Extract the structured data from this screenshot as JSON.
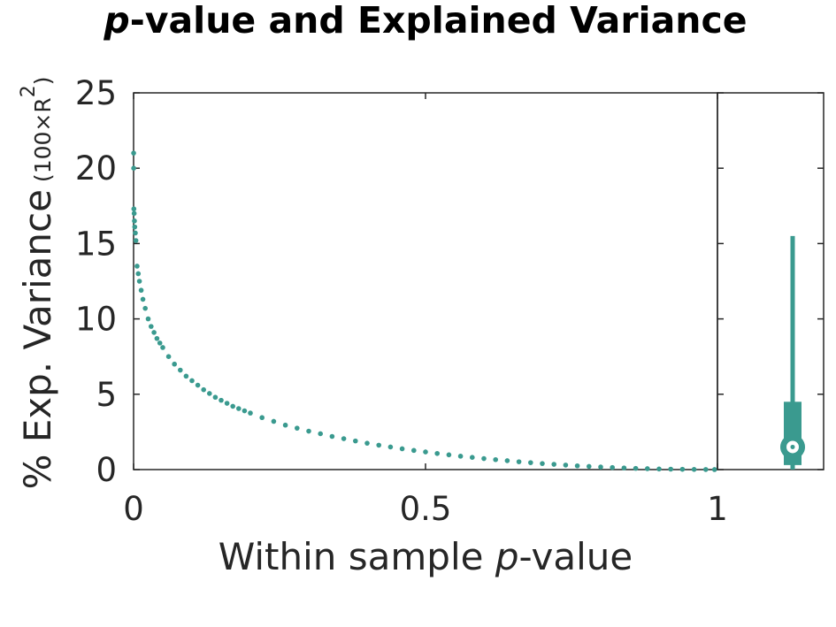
{
  "title": {
    "italic": "p",
    "rest": "-value and Explained Variance"
  },
  "xlabel": {
    "pre": "Within sample ",
    "italic": "p",
    "post": "-value"
  },
  "ylabel": {
    "main": "% Exp. Variance",
    "unit": "(100×R",
    "unit_sup": "2",
    "unit_close": ")"
  },
  "colors": {
    "series": "#3a9a8f",
    "axis": "#262626",
    "background": "#ffffff"
  },
  "chart_data": [
    {
      "type": "scatter",
      "xlim": [
        0,
        1
      ],
      "ylim": [
        0,
        25
      ],
      "grid": false,
      "x_ticks": [
        "0",
        "0.5",
        "1"
      ],
      "x_tick_values": [
        0,
        0.5,
        1
      ],
      "y_ticks": [
        "0",
        "5",
        "10",
        "15",
        "20",
        "25"
      ],
      "y_tick_values": [
        0,
        5,
        10,
        15,
        20,
        25
      ],
      "points": [
        [
          0.0001,
          21.0
        ],
        [
          0.0002,
          20.0
        ],
        [
          0.0005,
          17.3
        ],
        [
          0.001,
          17.0
        ],
        [
          0.0015,
          16.5
        ],
        [
          0.002,
          16.1
        ],
        [
          0.003,
          15.7
        ],
        [
          0.004,
          15.2
        ],
        [
          0.006,
          13.5
        ],
        [
          0.008,
          13.0
        ],
        [
          0.01,
          12.5
        ],
        [
          0.013,
          11.9
        ],
        [
          0.016,
          11.3
        ],
        [
          0.02,
          10.7
        ],
        [
          0.025,
          10.0
        ],
        [
          0.03,
          9.5
        ],
        [
          0.035,
          9.1
        ],
        [
          0.04,
          8.7
        ],
        [
          0.045,
          8.4
        ],
        [
          0.05,
          8.1
        ],
        [
          0.06,
          7.5
        ],
        [
          0.07,
          7.0
        ],
        [
          0.08,
          6.6
        ],
        [
          0.09,
          6.2
        ],
        [
          0.1,
          5.9
        ],
        [
          0.11,
          5.6
        ],
        [
          0.12,
          5.3
        ],
        [
          0.13,
          5.05
        ],
        [
          0.14,
          4.8
        ],
        [
          0.15,
          4.6
        ],
        [
          0.16,
          4.4
        ],
        [
          0.17,
          4.2
        ],
        [
          0.18,
          4.05
        ],
        [
          0.19,
          3.9
        ],
        [
          0.2,
          3.75
        ],
        [
          0.22,
          3.45
        ],
        [
          0.24,
          3.2
        ],
        [
          0.26,
          2.95
        ],
        [
          0.28,
          2.75
        ],
        [
          0.3,
          2.55
        ],
        [
          0.32,
          2.38
        ],
        [
          0.34,
          2.2
        ],
        [
          0.36,
          2.05
        ],
        [
          0.38,
          1.9
        ],
        [
          0.4,
          1.75
        ],
        [
          0.42,
          1.62
        ],
        [
          0.44,
          1.5
        ],
        [
          0.46,
          1.38
        ],
        [
          0.48,
          1.27
        ],
        [
          0.5,
          1.17
        ],
        [
          0.52,
          1.07
        ],
        [
          0.54,
          0.98
        ],
        [
          0.56,
          0.89
        ],
        [
          0.58,
          0.81
        ],
        [
          0.6,
          0.73
        ],
        [
          0.62,
          0.66
        ],
        [
          0.64,
          0.59
        ],
        [
          0.66,
          0.52
        ],
        [
          0.68,
          0.46
        ],
        [
          0.7,
          0.4
        ],
        [
          0.72,
          0.35
        ],
        [
          0.74,
          0.3
        ],
        [
          0.76,
          0.25
        ],
        [
          0.78,
          0.21
        ],
        [
          0.8,
          0.17
        ],
        [
          0.82,
          0.14
        ],
        [
          0.84,
          0.11
        ],
        [
          0.86,
          0.08
        ],
        [
          0.88,
          0.06
        ],
        [
          0.9,
          0.04
        ],
        [
          0.92,
          0.03
        ],
        [
          0.94,
          0.02
        ],
        [
          0.96,
          0.01
        ],
        [
          0.98,
          0.005
        ],
        [
          0.995,
          0.001
        ]
      ]
    },
    {
      "type": "box",
      "ylim": [
        0,
        25
      ],
      "median": 1.5,
      "q1": 0.3,
      "q3": 4.5,
      "whisker_low": 0,
      "whisker_high": 15.5
    }
  ]
}
